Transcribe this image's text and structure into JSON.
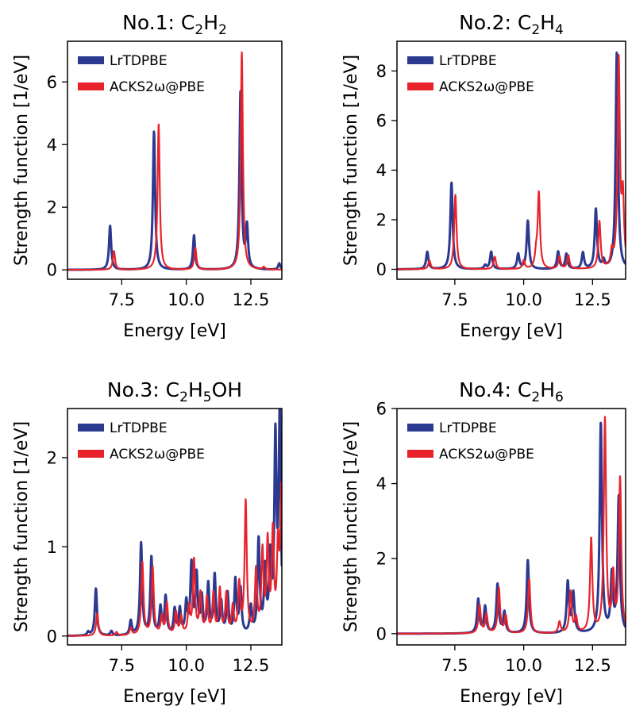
{
  "chart_data": [
    {
      "type": "line",
      "title": {
        "prefix": "No.1: C",
        "sub1": "2",
        "mid": "H",
        "sub2": "2",
        "suffix": ""
      },
      "xlabel": "Energy [eV]",
      "ylabel": "Strength function [1/eV]",
      "xlim": [
        5.4,
        13.7
      ],
      "ylim": [
        -0.3,
        7.3
      ],
      "xticks": [
        7.5,
        10.0,
        12.5
      ],
      "xticklabels": [
        "7.5",
        "10.0",
        "12.5"
      ],
      "yticks": [
        0,
        2,
        4,
        6
      ],
      "yticklabels": [
        "0",
        "2",
        "4",
        "6"
      ],
      "legend": {
        "position": "top-left"
      },
      "series": [
        {
          "name": "LrTDPBE",
          "color": "#2b3990",
          "peaks": [
            [
              7.05,
              1.4
            ],
            [
              8.75,
              4.42
            ],
            [
              10.3,
              1.1
            ],
            [
              12.1,
              5.7
            ],
            [
              12.35,
              1.33
            ],
            [
              13.6,
              0.2
            ]
          ]
        },
        {
          "name": "ACKS2ω@PBE",
          "color": "#e8232b",
          "peaks": [
            [
              7.2,
              0.6
            ],
            [
              8.93,
              4.65
            ],
            [
              10.35,
              0.7
            ],
            [
              12.15,
              6.95
            ],
            [
              13.0,
              0.08
            ]
          ]
        }
      ]
    },
    {
      "type": "line",
      "title": {
        "prefix": "No.2: C",
        "sub1": "2",
        "mid": "H",
        "sub2": "4",
        "suffix": ""
      },
      "xlabel": "Energy [eV]",
      "ylabel": "Strength function [1/eV]",
      "xlim": [
        5.4,
        13.7
      ],
      "ylim": [
        -0.4,
        9.2
      ],
      "xticks": [
        7.5,
        10.0,
        12.5
      ],
      "xticklabels": [
        "7.5",
        "10.0",
        "12.5"
      ],
      "yticks": [
        0,
        2,
        4,
        6,
        8
      ],
      "yticklabels": [
        "0",
        "2",
        "4",
        "6",
        "8"
      ],
      "legend": {
        "position": "top-left"
      },
      "series": [
        {
          "name": "LrTDPBE",
          "color": "#2b3990",
          "peaks": [
            [
              6.5,
              0.7
            ],
            [
              7.38,
              3.5
            ],
            [
              8.6,
              0.15
            ],
            [
              8.82,
              0.7
            ],
            [
              9.8,
              0.6
            ],
            [
              10.15,
              1.95
            ],
            [
              11.25,
              0.7
            ],
            [
              11.55,
              0.6
            ],
            [
              12.15,
              0.65
            ],
            [
              12.62,
              2.4
            ],
            [
              12.9,
              0.3
            ],
            [
              13.38,
              8.75
            ]
          ]
        },
        {
          "name": "ACKS2ω@PBE",
          "color": "#e8232b",
          "peaks": [
            [
              6.58,
              0.35
            ],
            [
              7.52,
              3.0
            ],
            [
              8.95,
              0.5
            ],
            [
              10.0,
              0.35
            ],
            [
              10.55,
              3.05
            ],
            [
              10.45,
              0.5
            ],
            [
              11.3,
              0.5
            ],
            [
              11.62,
              0.55
            ],
            [
              12.75,
              1.9
            ],
            [
              13.2,
              0.6
            ],
            [
              13.45,
              8.35
            ],
            [
              13.6,
              2.7
            ]
          ]
        }
      ]
    },
    {
      "type": "line",
      "title": {
        "prefix": "No.3: C",
        "sub1": "2",
        "mid": "H",
        "sub2": "5",
        "suffix": "OH"
      },
      "xlabel": "Energy [eV]",
      "ylabel": "Strength function [1/eV]",
      "xlim": [
        5.4,
        13.7
      ],
      "ylim": [
        -0.1,
        2.55
      ],
      "xticks": [
        7.5,
        10.0,
        12.5
      ],
      "xticklabels": [
        "7.5",
        "10.0",
        "12.5"
      ],
      "yticks": [
        0,
        1,
        2
      ],
      "yticklabels": [
        "0",
        "1",
        "2"
      ],
      "legend": {
        "position": "top-left"
      },
      "series": [
        {
          "name": "LrTDPBE",
          "color": "#2b3990",
          "peaks": [
            [
              6.2,
              0.04
            ],
            [
              6.5,
              0.53
            ],
            [
              7.1,
              0.05
            ],
            [
              7.85,
              0.16
            ],
            [
              8.25,
              1.03
            ],
            [
              8.65,
              0.87
            ],
            [
              9.0,
              0.3
            ],
            [
              9.2,
              0.42
            ],
            [
              9.55,
              0.28
            ],
            [
              9.75,
              0.28
            ],
            [
              10.0,
              0.35
            ],
            [
              10.2,
              0.78
            ],
            [
              10.4,
              0.65
            ],
            [
              10.6,
              0.4
            ],
            [
              10.85,
              0.55
            ],
            [
              11.1,
              0.65
            ],
            [
              11.35,
              0.35
            ],
            [
              11.6,
              0.45
            ],
            [
              11.9,
              0.6
            ],
            [
              12.1,
              0.5
            ],
            [
              12.5,
              0.3
            ],
            [
              12.8,
              1.05
            ],
            [
              13.05,
              0.7
            ],
            [
              13.25,
              0.8
            ],
            [
              13.45,
              2.12
            ],
            [
              13.62,
              2.42
            ]
          ]
        },
        {
          "name": "ACKS2ω@PBE",
          "color": "#e8232b",
          "peaks": [
            [
              6.55,
              0.25
            ],
            [
              7.3,
              0.04
            ],
            [
              7.85,
              0.08
            ],
            [
              8.3,
              0.82
            ],
            [
              8.7,
              0.76
            ],
            [
              9.05,
              0.2
            ],
            [
              9.25,
              0.35
            ],
            [
              9.6,
              0.25
            ],
            [
              9.8,
              0.2
            ],
            [
              10.1,
              0.3
            ],
            [
              10.3,
              0.83
            ],
            [
              10.55,
              0.45
            ],
            [
              10.8,
              0.4
            ],
            [
              11.05,
              0.45
            ],
            [
              11.3,
              0.5
            ],
            [
              11.55,
              0.45
            ],
            [
              11.8,
              0.3
            ],
            [
              12.05,
              0.55
            ],
            [
              12.3,
              1.48
            ],
            [
              12.7,
              0.7
            ],
            [
              12.95,
              0.9
            ],
            [
              13.15,
              1.0
            ],
            [
              13.35,
              1.1
            ],
            [
              13.55,
              0.9
            ],
            [
              13.68,
              1.57
            ]
          ]
        }
      ]
    },
    {
      "type": "line",
      "title": {
        "prefix": "No.4: C",
        "sub1": "2",
        "mid": "H",
        "sub2": "6",
        "suffix": ""
      },
      "xlabel": "Energy [eV]",
      "ylabel": "Strength function [1/eV]",
      "xlim": [
        5.4,
        13.7
      ],
      "ylim": [
        -0.3,
        6.0
      ],
      "xticks": [
        7.5,
        10.0,
        12.5
      ],
      "xticklabels": [
        "7.5",
        "10.0",
        "12.5"
      ],
      "yticks": [
        0,
        2,
        4,
        6
      ],
      "yticklabels": [
        "0",
        "2",
        "4",
        "6"
      ],
      "legend": {
        "position": "top-left"
      },
      "series": [
        {
          "name": "LrTDPBE",
          "color": "#2b3990",
          "peaks": [
            [
              8.35,
              0.9
            ],
            [
              8.6,
              0.7
            ],
            [
              9.05,
              1.3
            ],
            [
              9.3,
              0.55
            ],
            [
              10.15,
              1.95
            ],
            [
              11.6,
              1.35
            ],
            [
              11.8,
              1.05
            ],
            [
              12.8,
              5.6
            ],
            [
              13.2,
              1.5
            ],
            [
              13.45,
              3.6
            ]
          ]
        },
        {
          "name": "ACKS2ω@PBE",
          "color": "#e8232b",
          "peaks": [
            [
              8.4,
              0.75
            ],
            [
              8.65,
              0.5
            ],
            [
              9.1,
              1.2
            ],
            [
              9.35,
              0.45
            ],
            [
              10.2,
              1.45
            ],
            [
              11.3,
              0.3
            ],
            [
              11.7,
              1.1
            ],
            [
              11.9,
              0.4
            ],
            [
              12.45,
              2.5
            ],
            [
              12.95,
              5.7
            ],
            [
              13.25,
              1.45
            ],
            [
              13.5,
              4.1
            ]
          ]
        }
      ]
    }
  ]
}
